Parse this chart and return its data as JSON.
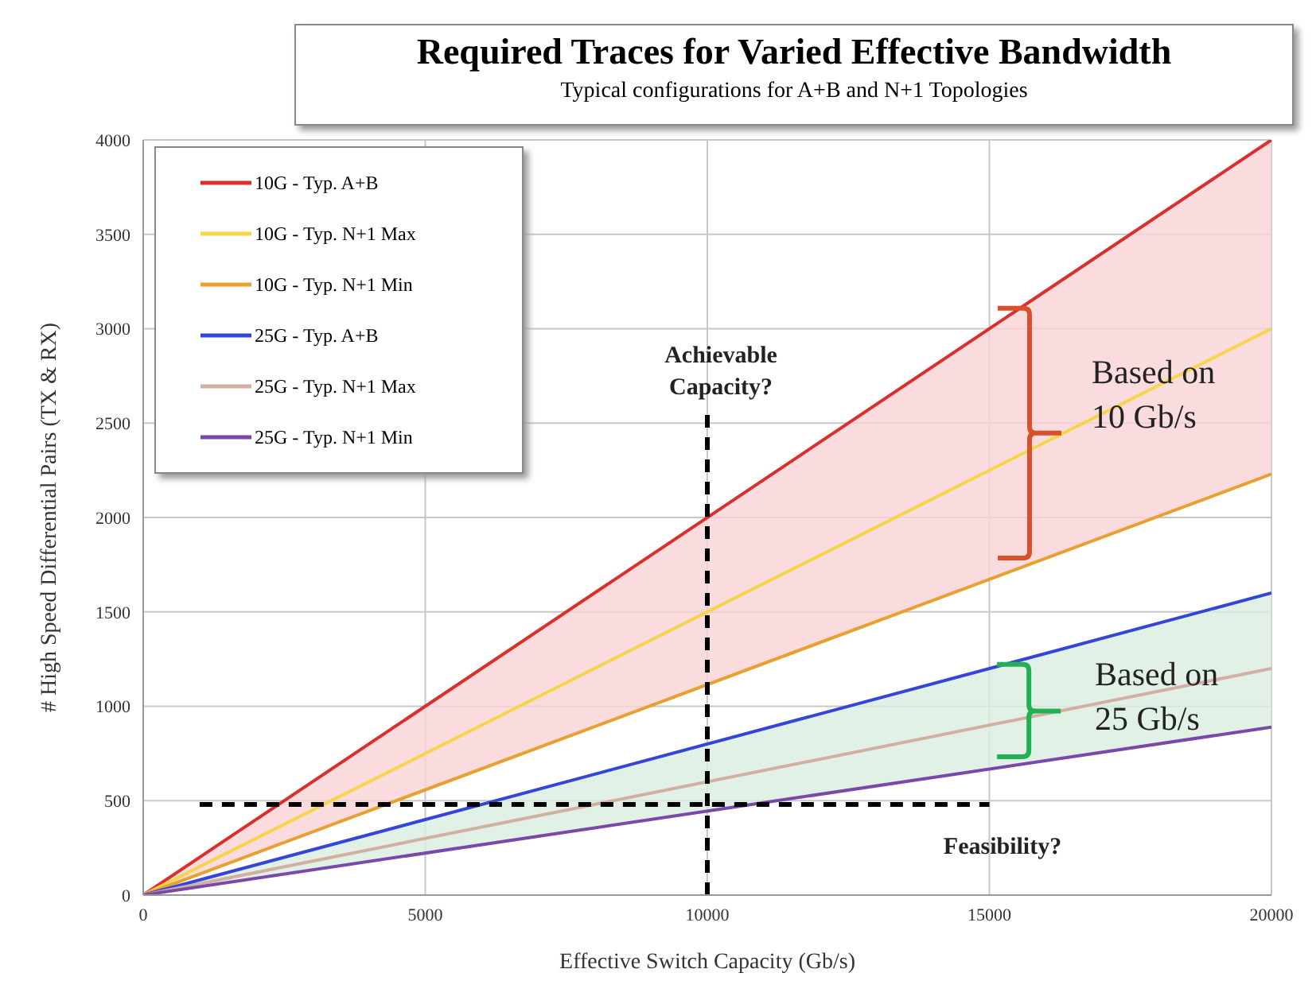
{
  "chart_data": {
    "type": "line",
    "title": "Required Traces for Varied Effective Bandwidth",
    "subtitle": "Typical configurations for A+B and N+1 Topologies",
    "xlabel": "Effective Switch Capacity (Gb/s)",
    "ylabel": "# High Speed Differential Pairs (TX & RX)",
    "x": [
      0,
      20000
    ],
    "series": [
      {
        "name": "10G - Typ. A+B",
        "color": "#d9302b",
        "values": [
          0,
          4000
        ]
      },
      {
        "name": "10G - Typ. N+1 Max",
        "color": "#f5d54a",
        "values": [
          0,
          3000
        ],
        "lower": [
          0,
          2230
        ],
        "upper": [
          0,
          4000
        ]
      },
      {
        "name": "10G - Typ. N+1 Min",
        "color": "#e8a030",
        "values": [
          0,
          2230
        ]
      },
      {
        "name": "25G - Typ. A+B",
        "color": "#3446d8",
        "values": [
          0,
          1600
        ]
      },
      {
        "name": "25G - Typ. N+1 Max",
        "color": "#d2aea3",
        "values": [
          0,
          1200
        ],
        "lower": [
          0,
          890
        ],
        "upper": [
          0,
          1600
        ]
      },
      {
        "name": "25G - Typ. N+1 Min",
        "color": "#7a48a8",
        "values": [
          0,
          890
        ]
      },
      {
        "color": "#000000",
        "x": [
          10000,
          10000
        ],
        "values": [
          0,
          2550
        ],
        "line_style": "dashed"
      },
      {
        "color": "#000000",
        "x": [
          1000,
          15000
        ],
        "values": [
          480,
          480
        ],
        "line_style": "dashed"
      }
    ],
    "xlim": [
      0,
      20000
    ],
    "xticks": [
      0,
      5000,
      10000,
      15000,
      20000
    ],
    "ylim": [
      0,
      4000
    ],
    "yticks": [
      0,
      500,
      1000,
      1500,
      2000,
      2500,
      3000,
      3500,
      4000
    ],
    "grid": true,
    "legend": "top left",
    "marker": "none",
    "line_style": "solid",
    "annotations": [
      "Achievable Capacity?",
      "Feasibility?",
      "Based on 10 Gb/s",
      {
        "text": "Based on 25 Gb/s",
        "x": 15700,
        "y": 975
      }
    ]
  }
}
